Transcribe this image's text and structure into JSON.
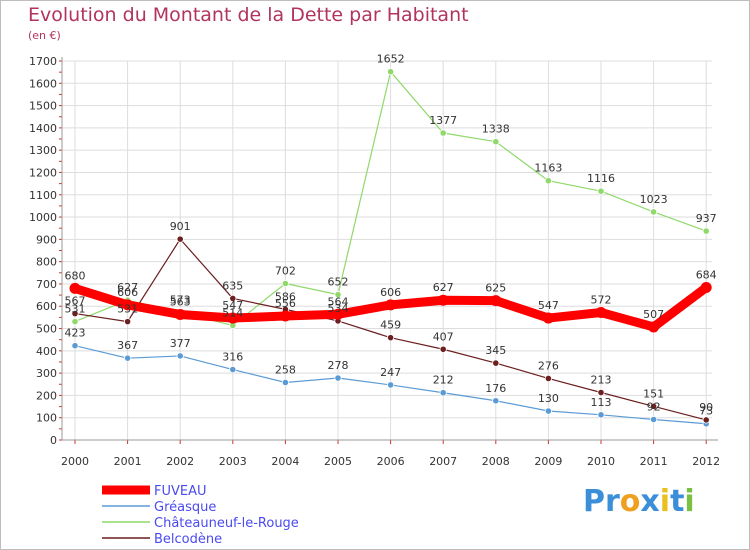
{
  "chart_data": {
    "type": "line",
    "title": "Evolution du Montant de la Dette par Habitant",
    "subtitle": "(en €)",
    "x": [
      "2000",
      "2001",
      "2002",
      "2003",
      "2004",
      "2005",
      "2006",
      "2007",
      "2008",
      "2009",
      "2010",
      "2011",
      "2012"
    ],
    "y_ticks": [
      0,
      100,
      200,
      300,
      400,
      500,
      600,
      700,
      800,
      900,
      1000,
      1100,
      1200,
      1300,
      1400,
      1500,
      1600,
      1700
    ],
    "ylim": [
      0,
      1700
    ],
    "grid": true,
    "legend_placement": "bottom-left",
    "series": [
      {
        "name": "FUVEAU",
        "color": "#ff0000",
        "values": [
          680,
          606,
          563,
          547,
          556,
          564,
          606,
          627,
          625,
          547,
          572,
          507,
          684
        ]
      },
      {
        "name": "Gréasque",
        "color": "#5b9bd5",
        "values": [
          423,
          367,
          377,
          316,
          258,
          278,
          247,
          212,
          176,
          130,
          113,
          92,
          73
        ]
      },
      {
        "name": "Châteauneuf-le-Rouge",
        "color": "#8fd96a",
        "values": [
          531,
          627,
          573,
          514,
          702,
          652,
          1652,
          1377,
          1338,
          1163,
          1116,
          1023,
          937
        ]
      },
      {
        "name": "Belcodène",
        "color": "#6b1f1f",
        "values": [
          567,
          531,
          901,
          635,
          586,
          534,
          459,
          407,
          345,
          276,
          213,
          151,
          90
        ]
      }
    ]
  },
  "brand": {
    "letters": [
      "P",
      "r",
      "o",
      "x",
      "i",
      "t",
      "i"
    ],
    "colors": [
      "#3a8fd8",
      "#3a8fd8",
      "#f0a020",
      "#3a8fd8",
      "#e8c020",
      "#3a8fd8",
      "#7ac043"
    ]
  },
  "colors": {
    "title": "#b2345e",
    "axis_text": "#333333",
    "legend_text": "#4a4af0",
    "tick_marks": "#d32f2f",
    "grid": "#dddddd"
  }
}
